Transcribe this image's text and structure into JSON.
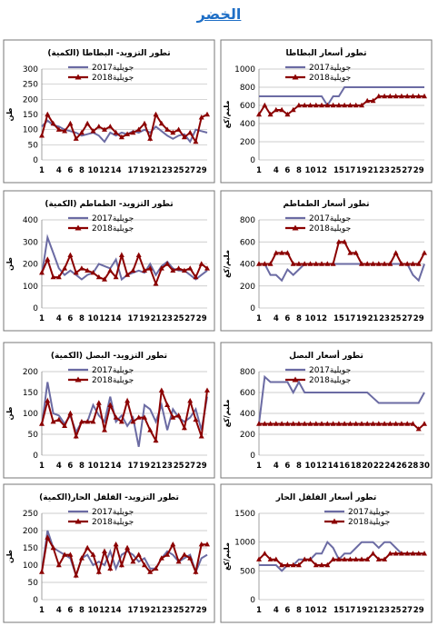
{
  "page_title": "الخضر",
  "chart_data": [
    {
      "id": "potato-prices",
      "type": "line",
      "title": "تطور أسعار البطاطا",
      "ylabel": "مليم/كغ",
      "x_ticks": [
        1,
        4,
        6,
        8,
        10,
        12,
        15,
        17,
        19,
        21,
        23,
        25,
        27,
        29
      ],
      "ylim": [
        0,
        1000
      ],
      "y_ticks": [
        0,
        200,
        400,
        600,
        800,
        1000
      ],
      "grid": true,
      "legend_position": "top-center",
      "series": [
        {
          "name": "جويلية2017",
          "color": "#6b6ba3",
          "marker": false,
          "values": [
            700,
            700,
            700,
            700,
            700,
            700,
            700,
            700,
            700,
            700,
            700,
            700,
            600,
            700,
            700,
            800,
            800,
            800,
            800,
            800,
            800,
            800,
            800,
            800,
            800,
            800,
            800,
            800,
            800,
            800
          ]
        },
        {
          "name": "جويلية2018",
          "color": "#8b0000",
          "marker": true,
          "values": [
            500,
            600,
            500,
            550,
            550,
            500,
            550,
            600,
            600,
            600,
            600,
            600,
            600,
            600,
            600,
            600,
            600,
            600,
            600,
            650,
            650,
            700,
            700,
            700,
            700,
            700,
            700,
            700,
            700,
            700
          ]
        }
      ]
    },
    {
      "id": "potato-supply",
      "type": "line",
      "title": "تطور التزويد- البطاطا (الكمية)",
      "ylabel": "طن",
      "x_ticks": [
        1,
        4,
        6,
        8,
        10,
        12,
        14,
        17,
        19,
        21,
        23,
        25,
        27,
        29
      ],
      "ylim": [
        0,
        300
      ],
      "y_ticks": [
        0,
        50,
        100,
        150,
        200,
        250,
        300
      ],
      "grid": true,
      "legend_position": "top-center",
      "series": [
        {
          "name": "جويلية2017",
          "color": "#6b6ba3",
          "marker": false,
          "values": [
            110,
            130,
            115,
            110,
            100,
            95,
            90,
            80,
            85,
            90,
            80,
            60,
            90,
            80,
            90,
            85,
            95,
            90,
            100,
            90,
            110,
            95,
            80,
            70,
            80,
            85,
            60,
            100,
            95,
            90
          ]
        },
        {
          "name": "جويلية2018",
          "color": "#8b0000",
          "marker": true,
          "values": [
            80,
            150,
            120,
            100,
            95,
            120,
            70,
            90,
            120,
            95,
            110,
            100,
            110,
            90,
            75,
            85,
            90,
            100,
            120,
            70,
            150,
            120,
            100,
            90,
            100,
            75,
            90,
            60,
            140,
            150
          ]
        }
      ]
    },
    {
      "id": "tomato-prices",
      "type": "line",
      "title": "تطور أسعار الطماطم",
      "ylabel": "مليم/كغ",
      "x_ticks": [
        1,
        4,
        6,
        8,
        10,
        12,
        15,
        17,
        19,
        21,
        23,
        25,
        27,
        29
      ],
      "ylim": [
        0,
        800
      ],
      "y_ticks": [
        0,
        200,
        400,
        600,
        800
      ],
      "grid": true,
      "legend_position": "top-center",
      "series": [
        {
          "name": "جويلية2017",
          "color": "#6b6ba3",
          "marker": false,
          "values": [
            400,
            400,
            300,
            300,
            250,
            350,
            300,
            350,
            400,
            400,
            400,
            400,
            400,
            400,
            400,
            400,
            400,
            400,
            400,
            400,
            400,
            400,
            400,
            400,
            400,
            400,
            400,
            300,
            250,
            400
          ]
        },
        {
          "name": "جويلية2018",
          "color": "#8b0000",
          "marker": true,
          "values": [
            400,
            400,
            400,
            500,
            500,
            500,
            400,
            400,
            400,
            400,
            400,
            400,
            400,
            400,
            600,
            600,
            500,
            500,
            400,
            400,
            400,
            400,
            400,
            400,
            500,
            400,
            400,
            400,
            400,
            500
          ]
        }
      ]
    },
    {
      "id": "tomato-supply",
      "type": "line",
      "title": "تطور التزويد- الطماطم (الكمية)",
      "ylabel": "طن",
      "x_ticks": [
        1,
        4,
        6,
        8,
        10,
        12,
        14,
        17,
        19,
        21,
        23,
        25,
        27,
        29
      ],
      "ylim": [
        0,
        400
      ],
      "y_ticks": [
        0,
        100,
        200,
        300,
        400
      ],
      "grid": true,
      "legend_position": "top-center",
      "series": [
        {
          "name": "جويلية2017",
          "color": "#6b6ba3",
          "marker": false,
          "values": [
            150,
            320,
            250,
            180,
            150,
            170,
            150,
            130,
            150,
            160,
            200,
            190,
            180,
            220,
            130,
            150,
            160,
            170,
            160,
            200,
            150,
            190,
            210,
            180,
            170,
            170,
            150,
            130,
            150,
            170
          ]
        },
        {
          "name": "جويلية2018",
          "color": "#8b0000",
          "marker": true,
          "values": [
            160,
            220,
            140,
            140,
            180,
            240,
            160,
            180,
            170,
            160,
            140,
            130,
            170,
            140,
            240,
            150,
            170,
            240,
            170,
            180,
            110,
            180,
            200,
            170,
            180,
            170,
            180,
            140,
            200,
            180
          ]
        }
      ]
    },
    {
      "id": "onion-prices",
      "type": "line",
      "title": "تطور أسعار البصل",
      "ylabel": "مليم/كغ",
      "x_ticks": [
        1,
        4,
        6,
        8,
        10,
        12,
        14,
        16,
        18,
        20,
        22,
        24,
        26,
        28,
        30
      ],
      "ylim": [
        0,
        800
      ],
      "y_ticks": [
        0,
        200,
        400,
        600,
        800
      ],
      "grid": true,
      "legend_position": "top-center",
      "series": [
        {
          "name": "جويلية2017",
          "color": "#6b6ba3",
          "marker": false,
          "values": [
            300,
            750,
            700,
            700,
            700,
            700,
            600,
            700,
            600,
            600,
            600,
            600,
            600,
            600,
            600,
            600,
            600,
            600,
            600,
            600,
            550,
            500,
            500,
            500,
            500,
            500,
            500,
            500,
            500,
            600
          ]
        },
        {
          "name": "جويلية2018",
          "color": "#8b0000",
          "marker": true,
          "values": [
            300,
            300,
            300,
            300,
            300,
            300,
            300,
            300,
            300,
            300,
            300,
            300,
            300,
            300,
            300,
            300,
            300,
            300,
            300,
            300,
            300,
            300,
            300,
            300,
            300,
            300,
            300,
            300,
            250,
            300
          ]
        }
      ]
    },
    {
      "id": "onion-supply",
      "type": "line",
      "title": "تطور التزويد- البصل (الكمية)",
      "ylabel": "طن",
      "x_ticks": [
        1,
        4,
        6,
        8,
        10,
        12,
        14,
        17,
        19,
        21,
        23,
        25,
        27,
        29
      ],
      "ylim": [
        0,
        200
      ],
      "y_ticks": [
        0,
        50,
        100,
        150,
        200
      ],
      "grid": true,
      "legend_position": "top-center",
      "series": [
        {
          "name": "جويلية2017",
          "color": "#6b6ba3",
          "marker": false,
          "values": [
            70,
            175,
            100,
            95,
            75,
            95,
            55,
            80,
            80,
            120,
            95,
            80,
            140,
            80,
            95,
            70,
            90,
            20,
            120,
            110,
            80,
            120,
            60,
            110,
            90,
            80,
            90,
            110,
            60,
            140
          ]
        },
        {
          "name": "جويلية2018",
          "color": "#8b0000",
          "marker": true,
          "values": [
            75,
            130,
            80,
            85,
            70,
            100,
            45,
            80,
            80,
            80,
            125,
            60,
            120,
            90,
            80,
            130,
            80,
            90,
            90,
            60,
            35,
            155,
            120,
            90,
            95,
            65,
            130,
            85,
            45,
            155
          ]
        }
      ]
    },
    {
      "id": "pepper-prices",
      "type": "line",
      "title": "تطور أسعار الفلفل الحار",
      "ylabel": "مليم/كغ",
      "x_ticks": [
        1,
        4,
        6,
        8,
        10,
        12,
        15,
        17,
        19,
        21,
        23,
        25,
        27,
        29
      ],
      "ylim": [
        0,
        1500
      ],
      "y_ticks": [
        0,
        500,
        1000,
        1500
      ],
      "grid": true,
      "legend_position": "top-right",
      "series": [
        {
          "name": "جويلية2017",
          "color": "#6b6ba3",
          "marker": false,
          "values": [
            600,
            600,
            600,
            600,
            500,
            600,
            600,
            700,
            700,
            700,
            800,
            800,
            1000,
            900,
            700,
            800,
            800,
            900,
            1000,
            1000,
            1000,
            900,
            1000,
            1000,
            900,
            800,
            800,
            800,
            800,
            800
          ]
        },
        {
          "name": "جويلية2018",
          "color": "#8b0000",
          "marker": true,
          "values": [
            700,
            800,
            700,
            700,
            600,
            600,
            600,
            600,
            700,
            700,
            600,
            600,
            600,
            700,
            700,
            700,
            700,
            700,
            700,
            700,
            800,
            700,
            700,
            800,
            800,
            800,
            800,
            800,
            800,
            800
          ]
        }
      ]
    },
    {
      "id": "pepper-supply",
      "type": "line",
      "title": "تطور التزويد- الفلفل الحار(الكمية)",
      "ylabel": "طن",
      "x_ticks": [
        1,
        4,
        6,
        8,
        10,
        12,
        14,
        17,
        19,
        21,
        23,
        25,
        27,
        29
      ],
      "ylim": [
        0,
        250
      ],
      "y_ticks": [
        0,
        50,
        100,
        150,
        200,
        250
      ],
      "grid": true,
      "legend_position": "top-center",
      "series": [
        {
          "name": "جويلية2017",
          "color": "#6b6ba3",
          "marker": false,
          "values": [
            80,
            200,
            150,
            140,
            130,
            120,
            70,
            120,
            130,
            100,
            110,
            100,
            140,
            90,
            130,
            140,
            130,
            110,
            120,
            90,
            90,
            120,
            140,
            130,
            110,
            120,
            130,
            80,
            120,
            130
          ]
        },
        {
          "name": "جويلية2018",
          "color": "#8b0000",
          "marker": true,
          "values": [
            80,
            180,
            150,
            100,
            130,
            130,
            70,
            120,
            150,
            130,
            80,
            140,
            90,
            160,
            100,
            150,
            110,
            130,
            100,
            80,
            90,
            120,
            130,
            160,
            110,
            130,
            120,
            80,
            160,
            160
          ]
        }
      ]
    }
  ]
}
